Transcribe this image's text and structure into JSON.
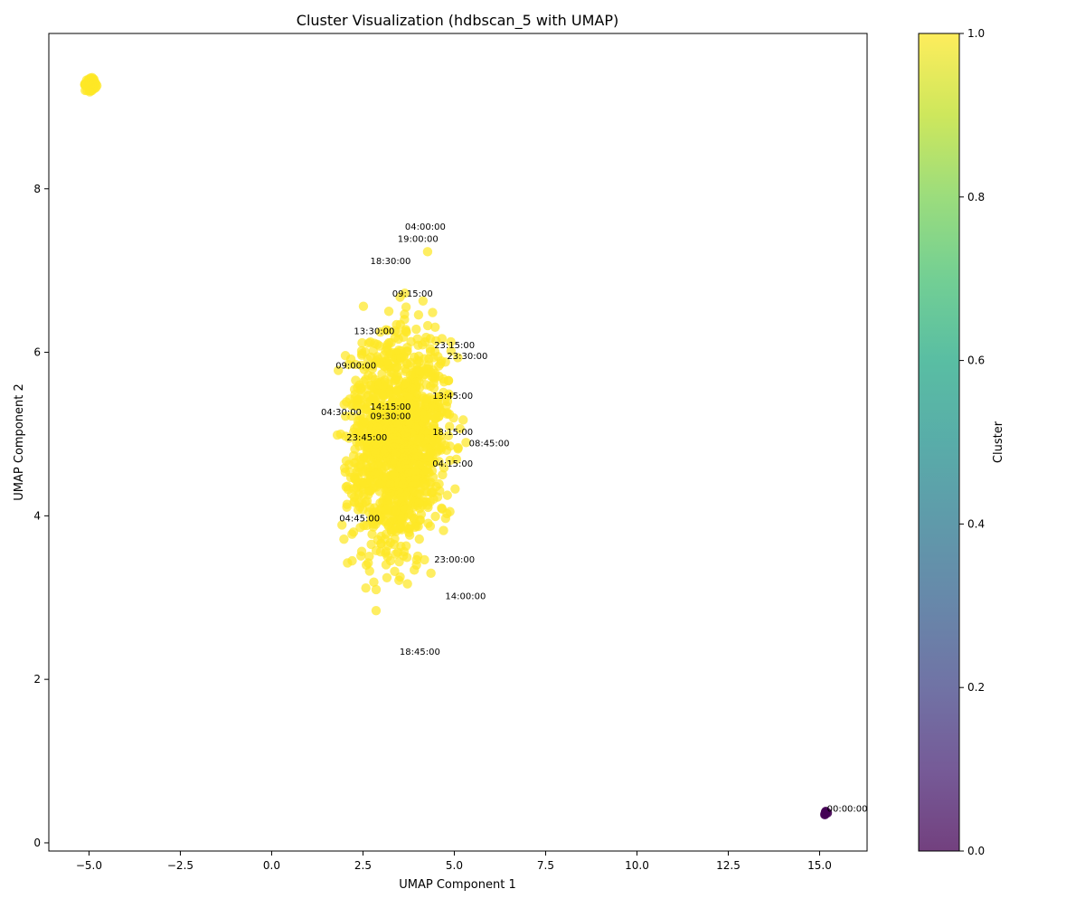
{
  "chart_data": {
    "type": "scatter",
    "title": "Cluster Visualization (hdbscan_5 with UMAP)",
    "xlabel": "UMAP Component 1",
    "ylabel": "UMAP Component 2",
    "xlim": [
      -6.1,
      16.3
    ],
    "ylim": [
      -0.1,
      9.9
    ],
    "xticks": [
      -5.0,
      -2.5,
      0.0,
      2.5,
      5.0,
      7.5,
      10.0,
      12.5,
      15.0
    ],
    "xtick_labels": [
      "−5.0",
      "−2.5",
      "0.0",
      "2.5",
      "5.0",
      "7.5",
      "10.0",
      "12.5",
      "15.0"
    ],
    "yticks": [
      0,
      2,
      4,
      6,
      8
    ],
    "ytick_labels": [
      "0",
      "2",
      "4",
      "6",
      "8"
    ],
    "grid": false,
    "colormap": "viridis",
    "colorbar": {
      "label": "Cluster",
      "range": [
        0.0,
        1.0
      ],
      "ticks": [
        0.0,
        0.2,
        0.4,
        0.6,
        0.8,
        1.0
      ],
      "tick_labels": [
        "0.0",
        "0.2",
        "0.4",
        "0.6",
        "0.8",
        "1.0"
      ]
    },
    "colors": {
      "cluster_1": "#fde725",
      "cluster_0": "#440154"
    },
    "clusters": [
      {
        "cluster": 1,
        "description": "large ellipse",
        "center": [
          3.5,
          4.9
        ],
        "spread": [
          1.25,
          1.3
        ],
        "x_range": [
          0.9,
          5.9
        ],
        "y_range": [
          2.3,
          7.5
        ],
        "approx_points": 1400
      },
      {
        "cluster": 1,
        "description": "small top-left group",
        "center": [
          -4.95,
          9.28
        ],
        "x_range": [
          -5.25,
          -4.7
        ],
        "y_range": [
          9.08,
          9.45
        ],
        "approx_points": 60
      },
      {
        "cluster": 0,
        "description": "tight bottom-right group",
        "center": [
          15.2,
          0.37
        ],
        "approx_points": 6
      }
    ],
    "annotations": [
      {
        "text": "04:00:00",
        "x": 3.65,
        "y": 7.5
      },
      {
        "text": "19:00:00",
        "x": 3.45,
        "y": 7.35
      },
      {
        "text": "18:30:00",
        "x": 2.7,
        "y": 7.08
      },
      {
        "text": "09:15:00",
        "x": 3.3,
        "y": 6.68
      },
      {
        "text": "13:30:00",
        "x": 2.25,
        "y": 6.22
      },
      {
        "text": "23:15:00",
        "x": 4.45,
        "y": 6.05
      },
      {
        "text": "23:30:00",
        "x": 4.8,
        "y": 5.92
      },
      {
        "text": "09:00:00",
        "x": 1.75,
        "y": 5.8
      },
      {
        "text": "13:45:00",
        "x": 4.4,
        "y": 5.43
      },
      {
        "text": "14:15:00",
        "x": 2.7,
        "y": 5.3
      },
      {
        "text": "04:30:00",
        "x": 1.35,
        "y": 5.23
      },
      {
        "text": "09:30:00",
        "x": 2.7,
        "y": 5.18
      },
      {
        "text": "18:15:00",
        "x": 4.4,
        "y": 4.99
      },
      {
        "text": "23:45:00",
        "x": 2.05,
        "y": 4.92
      },
      {
        "text": "08:45:00",
        "x": 5.4,
        "y": 4.85
      },
      {
        "text": "04:15:00",
        "x": 4.4,
        "y": 4.6
      },
      {
        "text": "04:45:00",
        "x": 1.85,
        "y": 3.93
      },
      {
        "text": "23:00:00",
        "x": 4.45,
        "y": 3.43
      },
      {
        "text": "14:00:00",
        "x": 4.75,
        "y": 2.98
      },
      {
        "text": "18:45:00",
        "x": 3.5,
        "y": 2.3
      },
      {
        "text": "00:00:00",
        "x": 15.2,
        "y": 0.38
      }
    ]
  }
}
